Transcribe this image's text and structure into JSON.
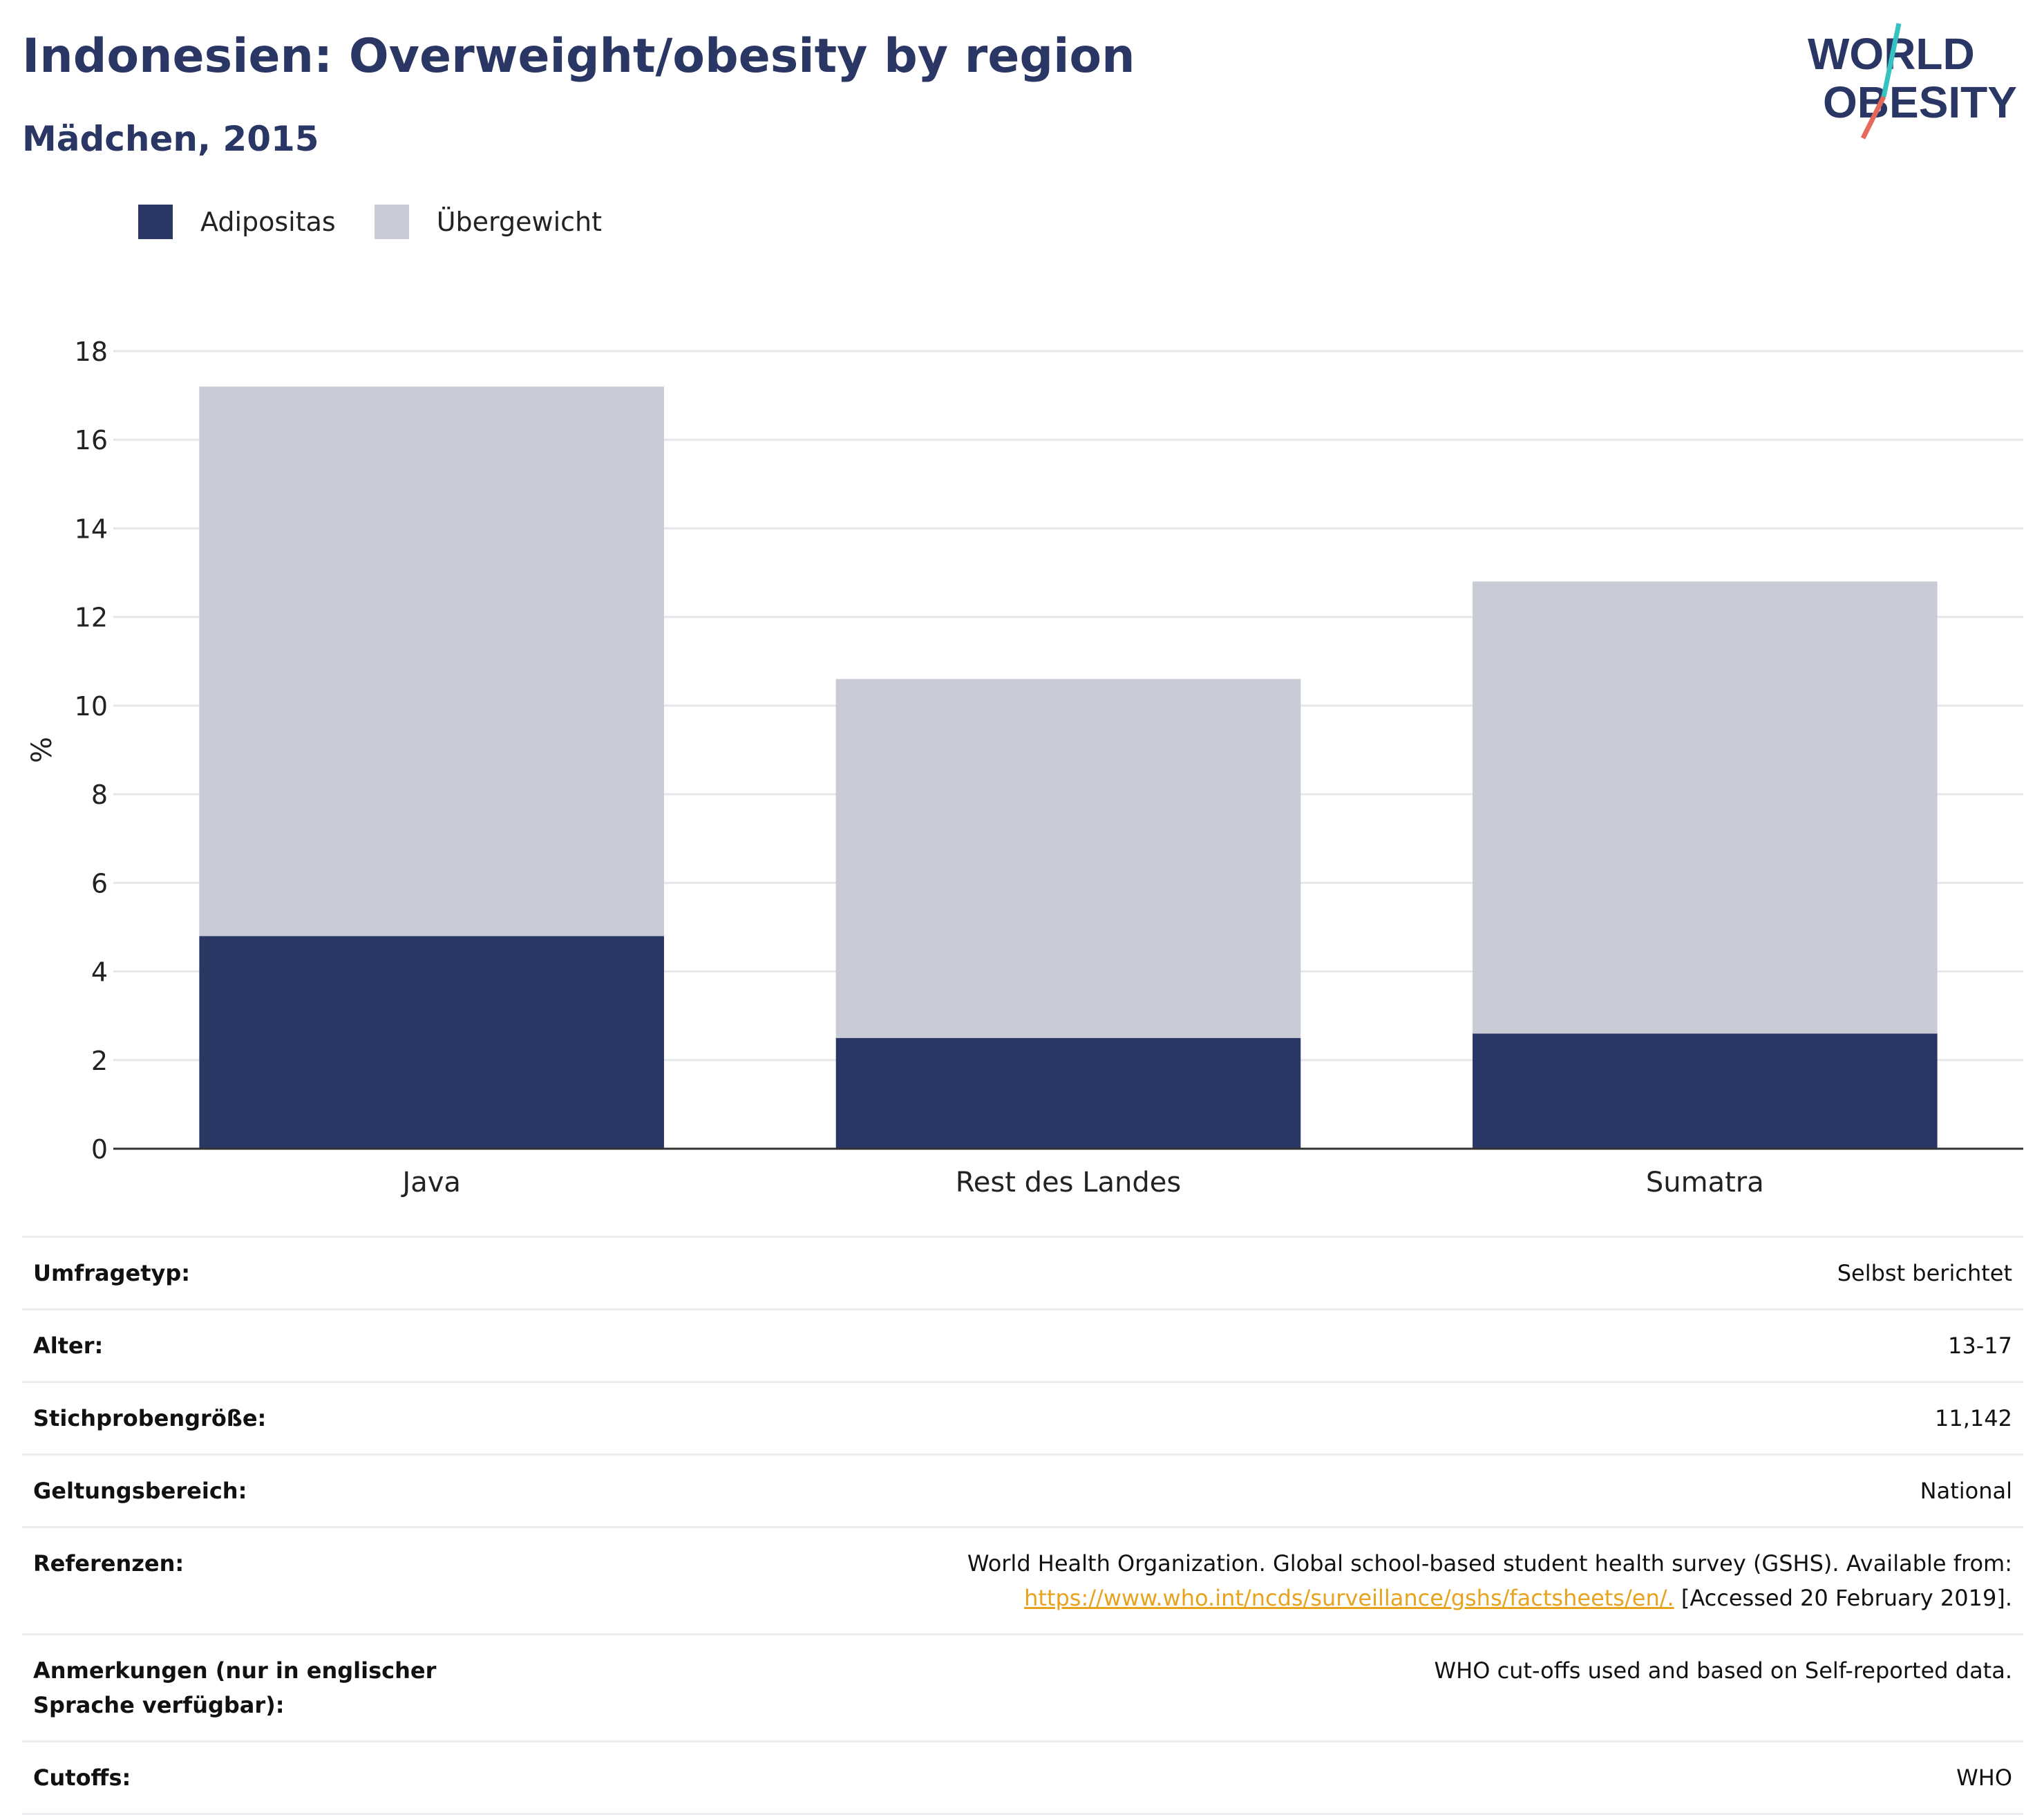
{
  "header": {
    "title": "Indonesien: Overweight/obesity by region",
    "subtitle": "Mädchen, 2015"
  },
  "logo": {
    "line1": "WORLD",
    "line2": "OBESITY"
  },
  "legend": [
    {
      "label": "Adipositas",
      "color": "#2a3664"
    },
    {
      "label": "Übergewicht",
      "color": "#c9cbd6"
    }
  ],
  "chart_data": {
    "type": "bar",
    "stacked": true,
    "categories": [
      "Java",
      "Rest des Landes",
      "Sumatra"
    ],
    "series": [
      {
        "name": "Adipositas",
        "values": [
          4.8,
          2.5,
          2.6
        ],
        "color": "#2a3664"
      },
      {
        "name": "Übergewicht",
        "values": [
          12.4,
          8.1,
          10.2
        ],
        "color": "#c9cbd6"
      }
    ],
    "ylabel": "%",
    "ylim": [
      0,
      18
    ],
    "yticks": [
      0,
      2,
      4,
      6,
      8,
      10,
      12,
      14,
      16,
      18
    ],
    "grid": true
  },
  "meta": {
    "survey_type": {
      "label": "Umfragetyp:",
      "value": "Selbst berichtet"
    },
    "age": {
      "label": "Alter:",
      "value": "13-17"
    },
    "sample_size": {
      "label": "Stichprobengröße:",
      "value": "11,142"
    },
    "scope": {
      "label": "Geltungsbereich:",
      "value": "National"
    },
    "references": {
      "label": "Referenzen:",
      "text1": "World Health Organization. Global school-based student health survey (GSHS). Available from:",
      "link": "https://www.who.int/ncds/surveillance/gshs/factsheets/en/.",
      "text2": " [Accessed 20 February 2019]."
    },
    "notes": {
      "label": "Anmerkungen (nur in englischer Sprache verfügbar):",
      "value": "WHO cut-offs used and based on Self-reported data."
    },
    "cutoffs": {
      "label": "Cutoffs:",
      "value": "WHO"
    }
  }
}
